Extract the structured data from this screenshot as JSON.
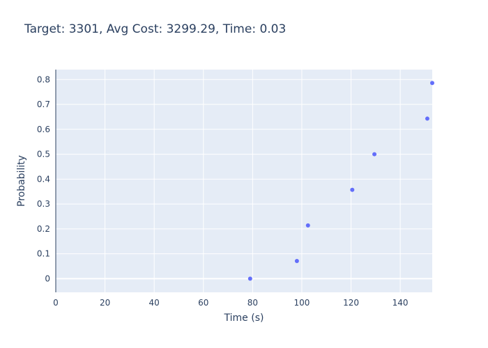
{
  "chart_data": {
    "type": "scatter",
    "title": "Target: 3301, Avg Cost: 3299.29, Time: 0.03",
    "xlabel": "Time (s)",
    "ylabel": "Probability",
    "xlim": [
      0,
      153
    ],
    "ylim": [
      -0.055,
      0.84
    ],
    "x_ticks": [
      0,
      20,
      40,
      60,
      80,
      100,
      120,
      140
    ],
    "y_ticks": [
      0,
      0.1,
      0.2,
      0.3,
      0.4,
      0.5,
      0.6,
      0.7,
      0.8
    ],
    "x_tick_labels": [
      "0",
      "20",
      "40",
      "60",
      "80",
      "100",
      "120",
      "140"
    ],
    "y_tick_labels": [
      "0",
      "0.1",
      "0.2",
      "0.3",
      "0.4",
      "0.5",
      "0.6",
      "0.7",
      "0.8"
    ],
    "grid": true,
    "marker_color": "#636efa",
    "plot_bg": "#e5ecf6",
    "points": [
      {
        "x": 79,
        "y": 0.0
      },
      {
        "x": 98,
        "y": 0.071
      },
      {
        "x": 102.5,
        "y": 0.214
      },
      {
        "x": 120.5,
        "y": 0.357
      },
      {
        "x": 129.5,
        "y": 0.5
      },
      {
        "x": 151,
        "y": 0.643
      },
      {
        "x": 153,
        "y": 0.786
      }
    ]
  }
}
